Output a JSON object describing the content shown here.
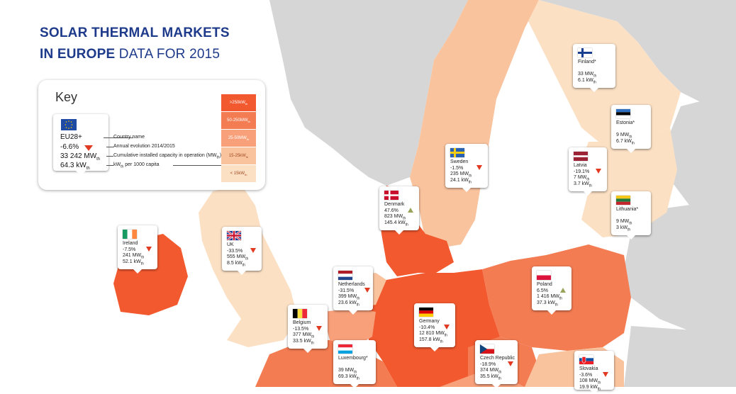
{
  "title": {
    "line1": "SOLAR THERMAL MARKETS",
    "line2_bold": "IN EUROPE",
    "line2_rest": " DATA FOR 2015"
  },
  "colors": {
    "sea": "#ffffff",
    "non_eu": "#d6d6d6",
    "gt250": "#f2592f",
    "c50_250": "#f47c53",
    "c25_50": "#f7a07a",
    "c15_25": "#f9c39e",
    "lt15": "#fbe0c4"
  },
  "key": {
    "title": "Key",
    "card": {
      "name": "EU28+",
      "evolution": "-6.6%",
      "capacity": "33 242 MW",
      "capacity_unit_sub": "th",
      "per_capita": "64.3 kW",
      "per_capita_sub": "th"
    },
    "descriptions": {
      "name": "Country name",
      "evolution": "Annual evolution 2014/2015",
      "capacity": "Cumulative installed capacity in operation (MW",
      "capacity_tail": ")",
      "per_capita": "kW",
      "per_capita_tail": " per 1000 capita",
      "sub": "th"
    },
    "legend": [
      ">250kW",
      "50-250MW",
      "25-50MW",
      "15-25kW",
      "< 15kW"
    ],
    "legend_sub": "th"
  },
  "countries": [
    {
      "id": "finland",
      "name": "Finland*",
      "evolution": "",
      "capacity": "33 MW",
      "per_capita": "6.1 kW",
      "flag": "finland-flag",
      "trend": "none"
    },
    {
      "id": "estonia",
      "name": "Estonia*",
      "evolution": "",
      "capacity": "9 MW",
      "per_capita": "6.7 kW",
      "flag": "estonia-flag",
      "trend": "none"
    },
    {
      "id": "sweden",
      "name": "Sweden",
      "evolution": "-1.5%",
      "capacity": "235 MW",
      "per_capita": "24.1 kW",
      "flag": "sweden-flag",
      "trend": "down"
    },
    {
      "id": "latvia",
      "name": "Latvia",
      "evolution": "-19.1%",
      "capacity": "7 MW",
      "per_capita": "3.7 kW",
      "flag": "latvia-flag",
      "trend": "down"
    },
    {
      "id": "lithuania",
      "name": "Lithuania*",
      "evolution": "",
      "capacity": "9 MW",
      "per_capita": "3 kW",
      "flag": "lithuania-flag",
      "trend": "none"
    },
    {
      "id": "denmark",
      "name": "Denmark",
      "evolution": "47.6%",
      "capacity": "823 MW",
      "per_capita": "145.4 kW",
      "flag": "denmark-flag",
      "trend": "up"
    },
    {
      "id": "ireland",
      "name": "Ireland",
      "evolution": "-7.5%",
      "capacity": "241 MW",
      "per_capita": "52.1 kW",
      "flag": "ireland-flag",
      "trend": "down"
    },
    {
      "id": "uk",
      "name": "UK",
      "evolution": "-33.5%",
      "capacity": "555 MW",
      "per_capita": "8.5 kW",
      "flag": "uk-flag",
      "trend": "down"
    },
    {
      "id": "netherlands",
      "name": "Netherlands",
      "evolution": "-31.5%",
      "capacity": "399 MW",
      "per_capita": "23.6 kW",
      "flag": "netherlands-flag",
      "trend": "down"
    },
    {
      "id": "poland",
      "name": "Poland",
      "evolution": "6.5%",
      "capacity": "1 416 MW",
      "per_capita": "37.3 kW",
      "flag": "poland-flag",
      "trend": "up"
    },
    {
      "id": "belgium",
      "name": "Belgium",
      "evolution": "-13.5%",
      "capacity": "377 MW",
      "per_capita": "33.5 kW",
      "flag": "belgium-flag",
      "trend": "down"
    },
    {
      "id": "germany",
      "name": "Germany",
      "evolution": "-10.4%",
      "capacity": "12 810 MW",
      "per_capita": "157.8 kW",
      "flag": "germany-flag",
      "trend": "down"
    },
    {
      "id": "luxembourg",
      "name": "Luxembourg*",
      "evolution": "",
      "capacity": "39 MW",
      "per_capita": "69.3 kW",
      "flag": "luxembourg-flag",
      "trend": "none"
    },
    {
      "id": "czech",
      "name": "Czech Republic",
      "evolution": "-18.9%",
      "capacity": "374 MW",
      "per_capita": "35.5 kW",
      "flag": "czech-flag",
      "trend": "down"
    },
    {
      "id": "slovakia",
      "name": "Slovakia",
      "evolution": "-3.6%",
      "capacity": "108 MW",
      "per_capita": "19.9 kW",
      "flag": "slovakia-flag",
      "trend": "down"
    }
  ],
  "unit_sub": "th"
}
